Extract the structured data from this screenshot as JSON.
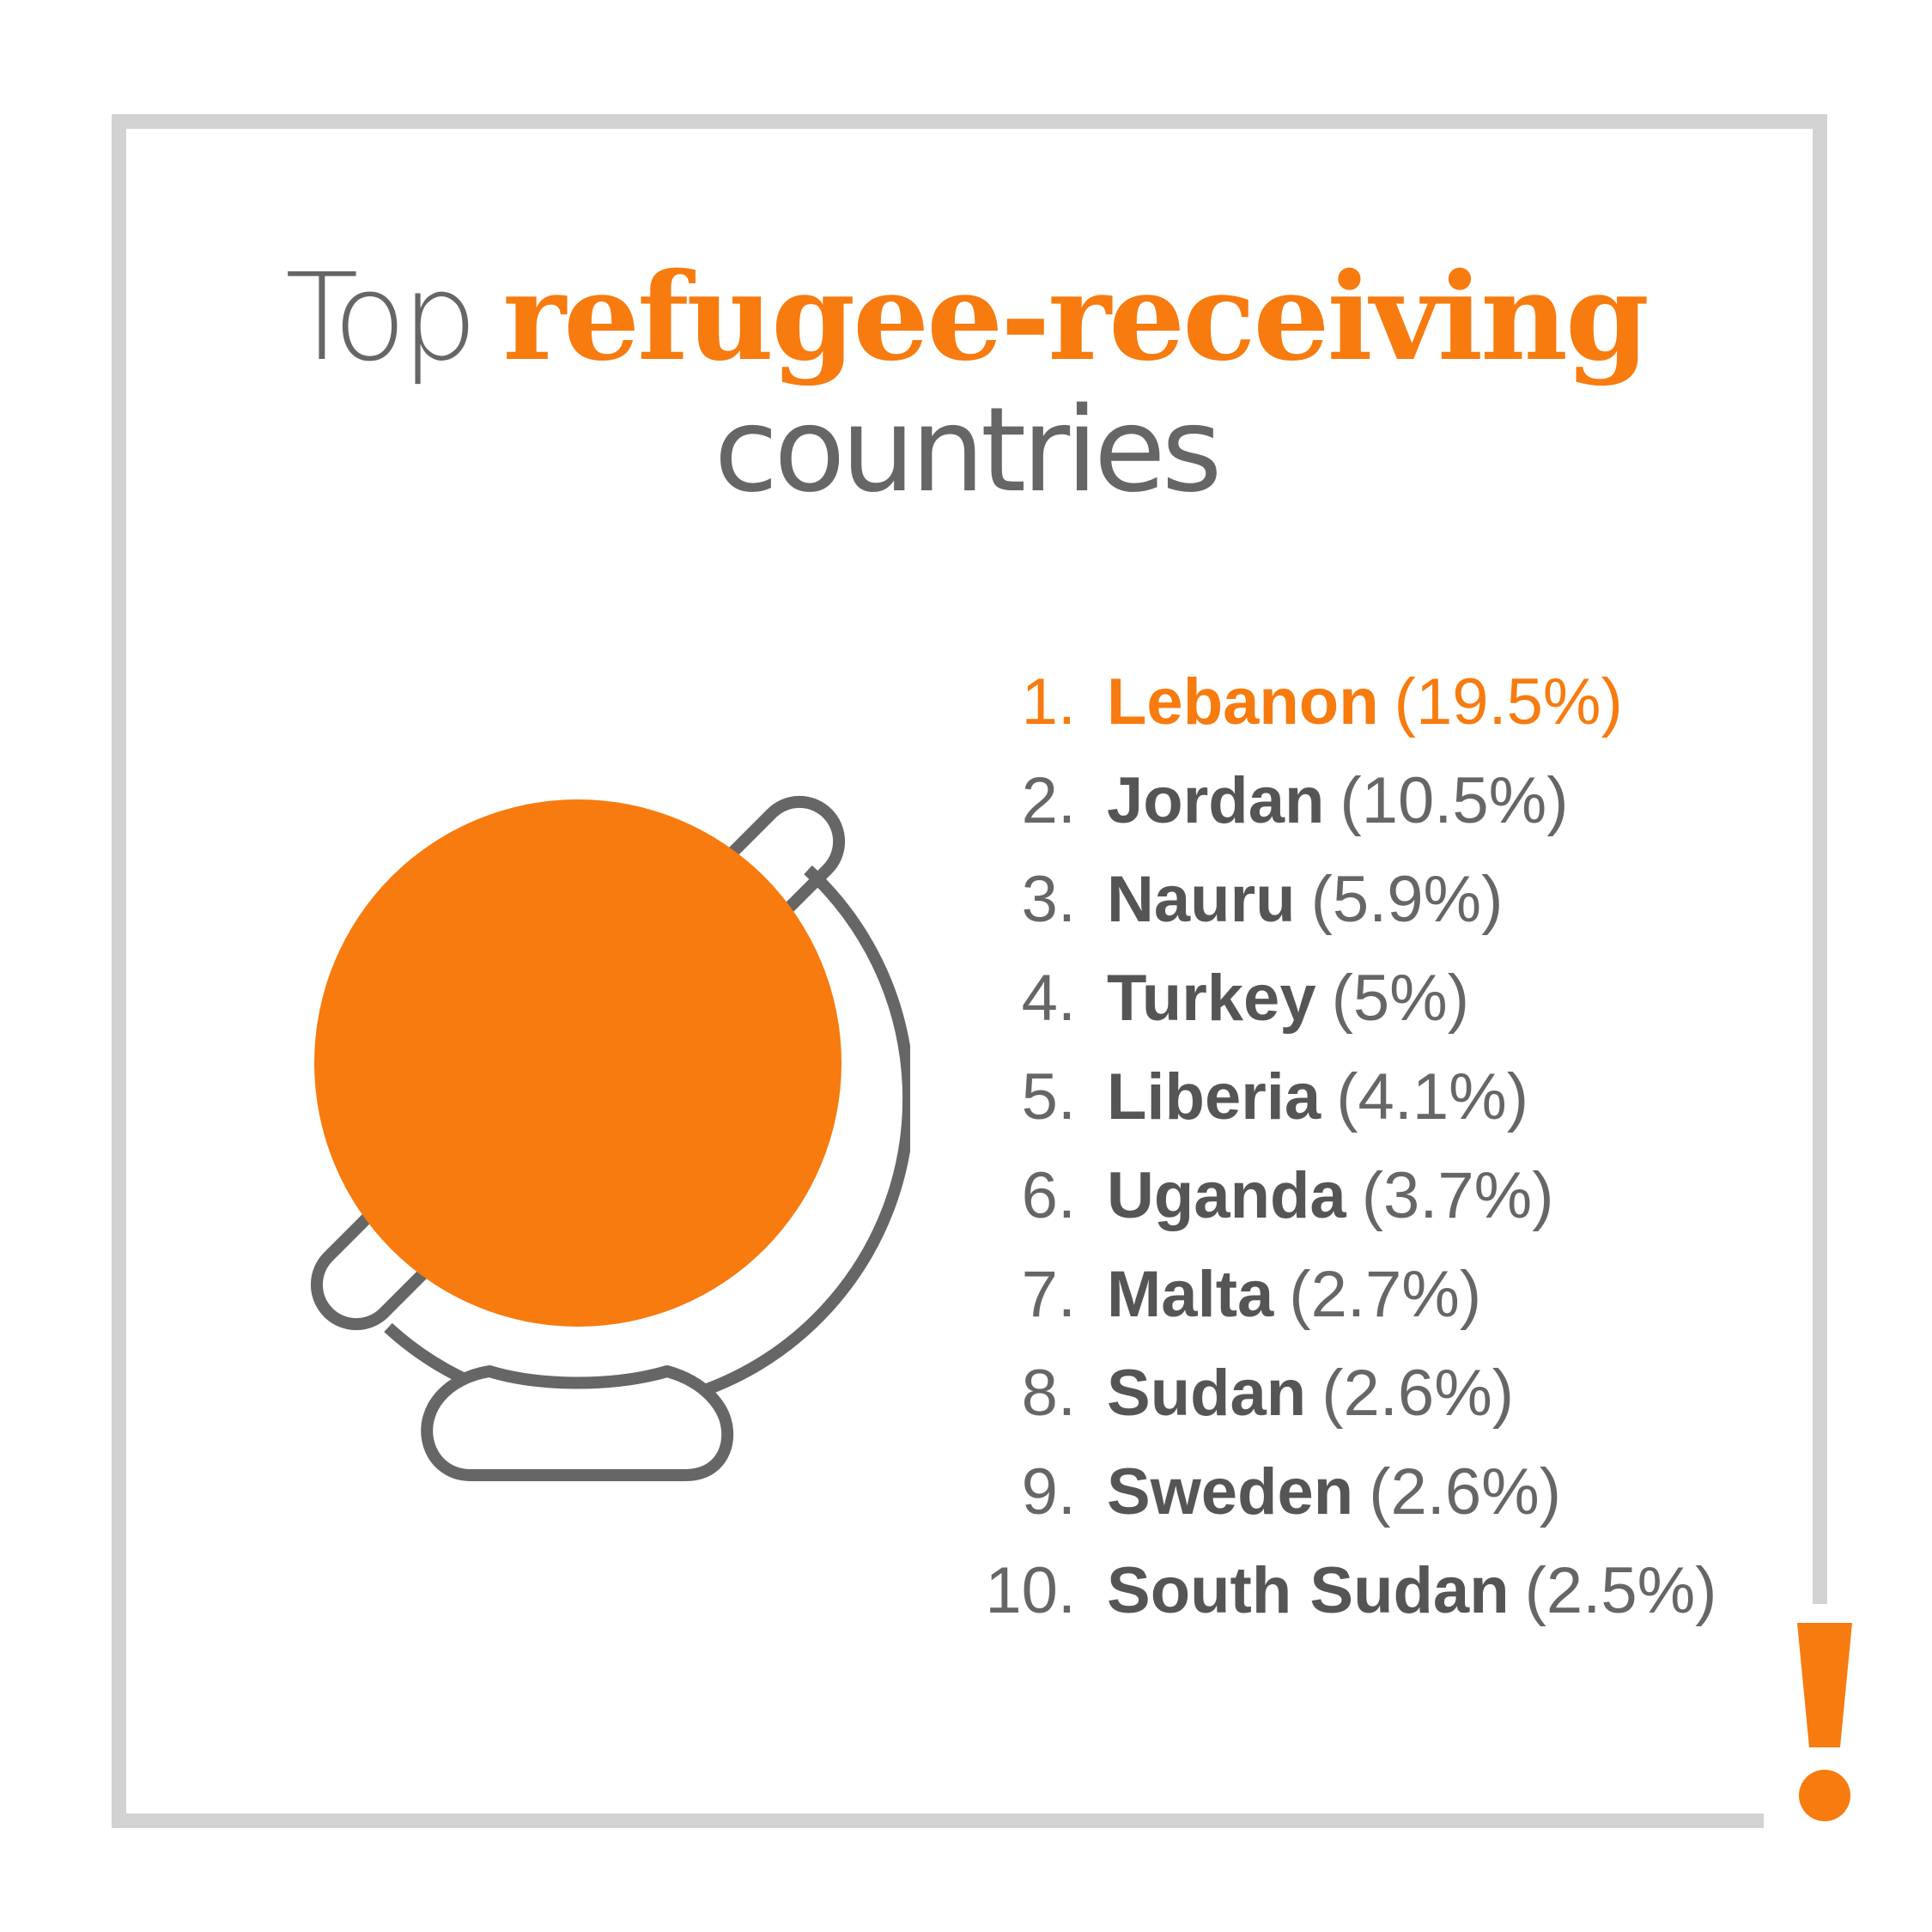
{
  "title": {
    "prefix": "Top",
    "accent": "refugee-receiving",
    "line2": "countries"
  },
  "colors": {
    "accent": "#f77b0f",
    "text_gray": "#666666",
    "dark_gray": "#555555",
    "frame_gray": "#d2d2d2"
  },
  "icons": {
    "globe": "globe-icon",
    "exclamation": "exclamation-icon"
  },
  "ranking": [
    {
      "rank": "1.",
      "country": "Lebanon",
      "share": "(19.5%)"
    },
    {
      "rank": "2.",
      "country": "Jordan",
      "share": "(10.5%)"
    },
    {
      "rank": "3.",
      "country": "Nauru",
      "share": "(5.9%)"
    },
    {
      "rank": "4.",
      "country": "Turkey",
      "share": "(5%)"
    },
    {
      "rank": "5.",
      "country": "Liberia",
      "share": "(4.1%)"
    },
    {
      "rank": "6.",
      "country": "Uganda",
      "share": "(3.7%)"
    },
    {
      "rank": "7.",
      "country": "Malta",
      "share": "(2.7%)"
    },
    {
      "rank": "8.",
      "country": "Sudan",
      "share": "(2.6%)"
    },
    {
      "rank": "9.",
      "country": "Sweden",
      "share": "(2.6%)"
    },
    {
      "rank": "10.",
      "country": "South Sudan",
      "share": "(2.5%)"
    }
  ]
}
